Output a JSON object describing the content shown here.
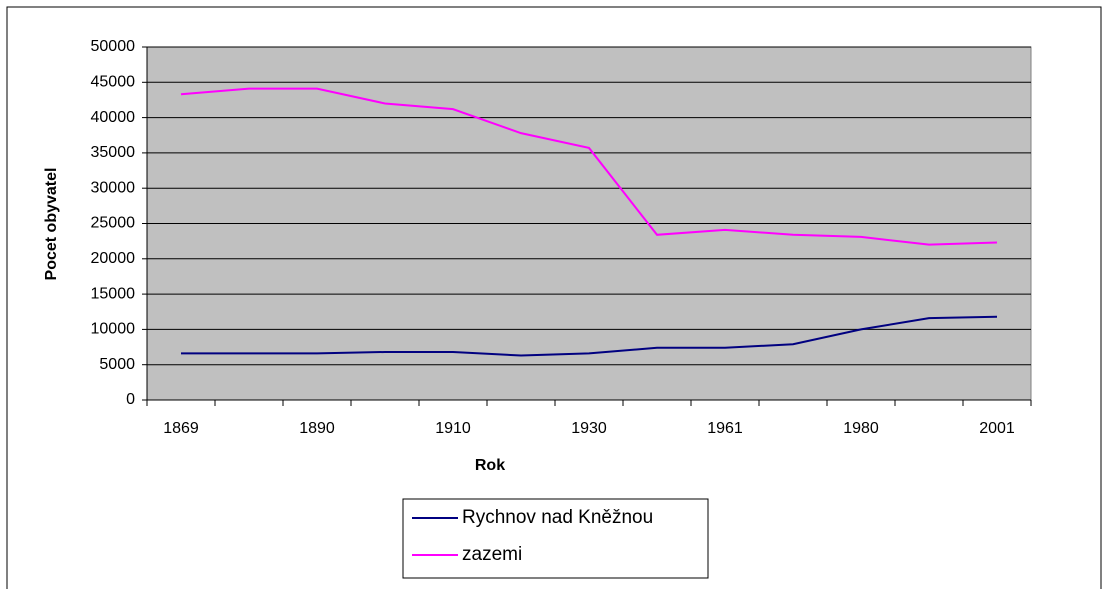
{
  "chart_data": {
    "type": "line",
    "x_label": "Rok",
    "y_label": "Pocet obyvatel",
    "categories": [
      "1869",
      null,
      "1890",
      null,
      "1910",
      null,
      "1930",
      null,
      "1961",
      null,
      "1980",
      null,
      "2001"
    ],
    "series": [
      {
        "name": "Rychnov nad Kněžnou",
        "color": "#000080",
        "values": [
          6600,
          6600,
          6600,
          6800,
          6800,
          6300,
          6600,
          7400,
          7400,
          7900,
          10000,
          11600,
          11800
        ]
      },
      {
        "name": "zazemi",
        "color": "#ff00ff",
        "values": [
          43300,
          44100,
          44100,
          42000,
          41200,
          37800,
          35700,
          23400,
          24100,
          23400,
          23100,
          22000,
          22300
        ]
      }
    ],
    "ylim": [
      0,
      50000
    ],
    "yticks": [
      0,
      5000,
      10000,
      15000,
      20000,
      25000,
      30000,
      35000,
      40000,
      45000,
      50000
    ],
    "grid": true,
    "plot_background": "#c0c0c0"
  }
}
